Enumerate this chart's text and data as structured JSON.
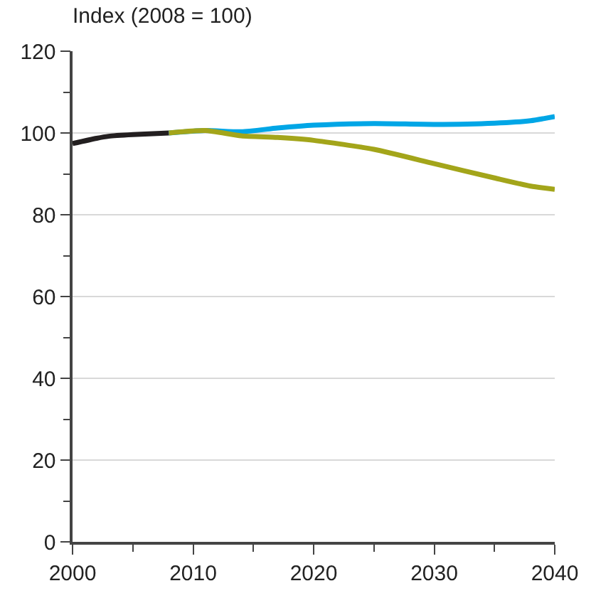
{
  "chart_data": {
    "type": "line",
    "ylabel": "Index (2008 = 100)",
    "series": [
      {
        "color": "#231f20",
        "x": [
          2000,
          2002,
          2003,
          2005,
          2008
        ],
        "values": [
          97.4,
          98.7,
          99.2,
          99.6,
          100
        ]
      },
      {
        "color": "#00a6e6",
        "x": [
          2008,
          2011,
          2014,
          2017,
          2020,
          2025,
          2030,
          2035,
          2038,
          2040
        ],
        "values": [
          100,
          100.6,
          100.3,
          101.2,
          101.9,
          102.3,
          102.1,
          102.4,
          103,
          104
        ]
      },
      {
        "color": "#a3a51a",
        "x": [
          2008,
          2011,
          2014,
          2017,
          2020,
          2025,
          2030,
          2035,
          2038,
          2040
        ],
        "values": [
          100,
          100.6,
          99.3,
          98.9,
          98.2,
          96,
          92.5,
          89,
          87,
          86.2
        ]
      }
    ],
    "xlim": [
      2000,
      2040
    ],
    "xticks": [
      2000,
      {
        "value": 2005,
        "label": null
      },
      2010,
      {
        "value": 2015,
        "label": null
      },
      2020,
      {
        "value": 2025,
        "label": null
      },
      2030,
      {
        "value": 2035,
        "label": null
      },
      2040
    ],
    "ylim": [
      0,
      120
    ],
    "yticks": [
      0,
      {
        "value": 10,
        "label": null
      },
      20,
      {
        "value": 30,
        "label": null
      },
      40,
      {
        "value": 50,
        "label": null
      },
      60,
      {
        "value": 70,
        "label": null
      },
      80,
      {
        "value": 90,
        "label": null
      },
      100,
      {
        "value": 110,
        "label": null
      },
      120
    ],
    "grid": "y",
    "marker": "none",
    "line_style": "solid"
  }
}
